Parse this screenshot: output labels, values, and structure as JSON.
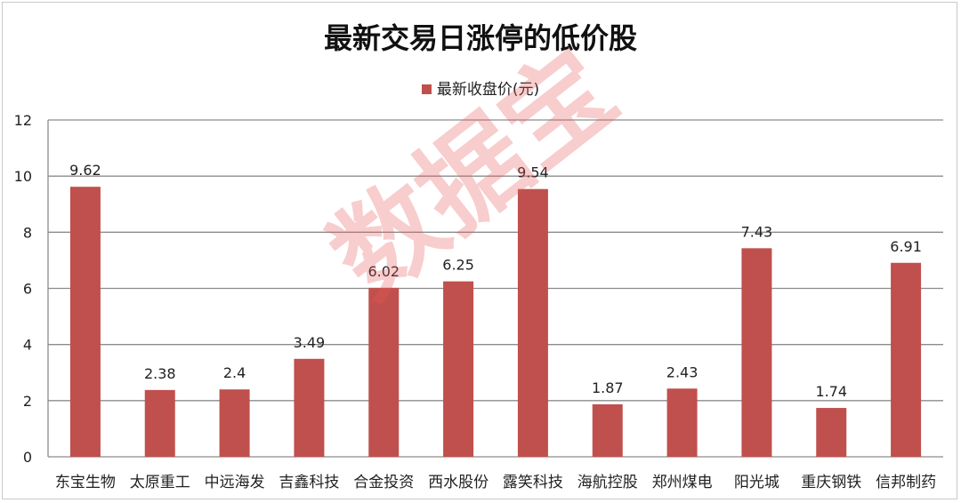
{
  "chart_data": {
    "type": "bar",
    "title": "最新交易日涨停的低价股",
    "legend": [
      "最新收盘价(元)"
    ],
    "legend_position": "top",
    "categories": [
      "东宝生物",
      "太原重工",
      "中远海发",
      "吉鑫科技",
      "合金投资",
      "西水股份",
      "露笑科技",
      "海航控股",
      "郑州煤电",
      "阳光城",
      "重庆钢铁",
      "信邦制药"
    ],
    "series": [
      {
        "name": "最新收盘价(元)",
        "values": [
          9.62,
          2.38,
          2.4,
          3.49,
          6.02,
          6.25,
          9.54,
          1.87,
          2.43,
          7.43,
          1.74,
          6.91
        ],
        "labels": [
          "9.62",
          "2.38",
          "2.4",
          "3.49",
          "6.02",
          "6.25",
          "9.54",
          "1.87",
          "2.43",
          "7.43",
          "1.74",
          "6.91"
        ],
        "color": "#c0504d"
      }
    ],
    "ylim": [
      0,
      12
    ],
    "yticks": [
      "0",
      "2",
      "4",
      "6",
      "8",
      "10",
      "12"
    ],
    "grid": true
  },
  "watermark": "数据宝"
}
